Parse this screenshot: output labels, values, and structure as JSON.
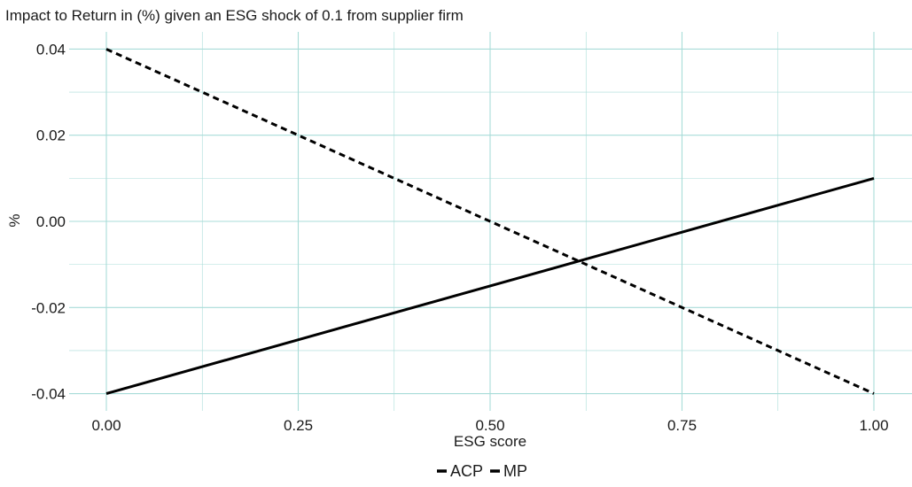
{
  "chart_data": {
    "type": "line",
    "title": "Impact to Return in (%) given an ESG shock of 0.1 from supplier firm",
    "xlabel": "ESG score",
    "ylabel": "%",
    "xlim": [
      0,
      1
    ],
    "ylim": [
      -0.044,
      0.044
    ],
    "x_ticks": [
      0,
      0.25,
      0.5,
      0.75,
      1
    ],
    "x_tick_labels": [
      "0.00",
      "0.25",
      "0.50",
      "0.75",
      "1.00"
    ],
    "y_ticks": [
      -0.04,
      -0.02,
      0,
      0.02,
      0.04
    ],
    "y_tick_labels": [
      "-0.04",
      "-0.02",
      "0.00",
      "0.02",
      "0.04"
    ],
    "grid": true,
    "grid_color": "#a8dcd8",
    "legend_position": "bottom",
    "series": [
      {
        "name": "ACP",
        "line_style": "solid",
        "color": "#000000",
        "x": [
          0,
          1
        ],
        "y": [
          -0.04,
          0.01
        ]
      },
      {
        "name": "MP",
        "line_style": "dashed",
        "color": "#000000",
        "x": [
          0,
          1
        ],
        "y": [
          0.04,
          -0.04
        ]
      }
    ]
  }
}
